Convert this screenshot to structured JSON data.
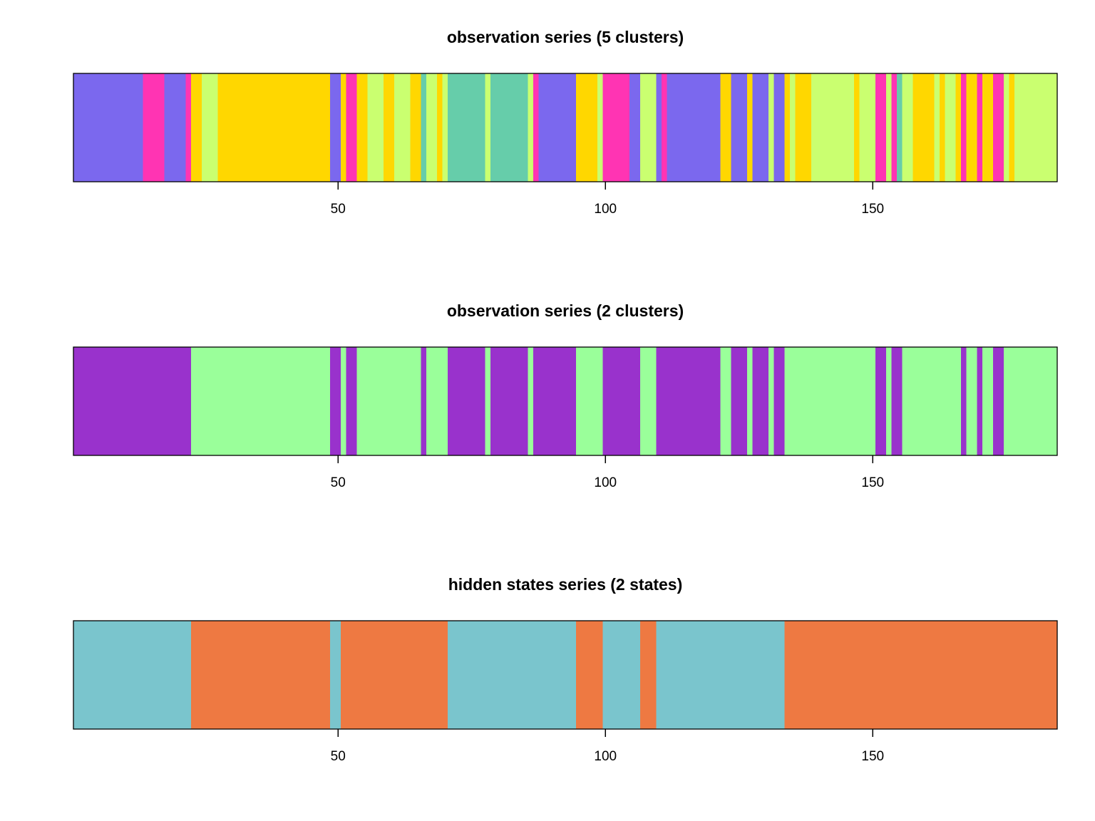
{
  "chart_data": [
    {
      "type": "heatmap",
      "title": "observation series (5 clusters)",
      "xlabel": "",
      "ylabel": "",
      "xlim": [
        0.5,
        184.5
      ],
      "n_observations": 184,
      "xticks": [
        50,
        100,
        150
      ],
      "xtick_labels": [
        "50",
        "100",
        "150"
      ],
      "legend": "none",
      "states": {
        "1": {
          "name": "cluster 1",
          "color": "#7B68EE"
        },
        "2": {
          "name": "cluster 2",
          "color": "#FF34B3"
        },
        "3": {
          "name": "cluster 3",
          "color": "#FFD700"
        },
        "4": {
          "name": "cluster 4",
          "color": "#CAFF70"
        },
        "5": {
          "name": "cluster 5",
          "color": "#66CDAA"
        }
      },
      "runs": [
        [
          1,
          13
        ],
        [
          2,
          4
        ],
        [
          1,
          4
        ],
        [
          2,
          1
        ],
        [
          3,
          2
        ],
        [
          4,
          3
        ],
        [
          3,
          21
        ],
        [
          1,
          2
        ],
        [
          3,
          1
        ],
        [
          2,
          2
        ],
        [
          3,
          2
        ],
        [
          4,
          3
        ],
        [
          3,
          2
        ],
        [
          4,
          3
        ],
        [
          3,
          2
        ],
        [
          5,
          1
        ],
        [
          4,
          2
        ],
        [
          3,
          1
        ],
        [
          4,
          1
        ],
        [
          5,
          7
        ],
        [
          4,
          1
        ],
        [
          5,
          7
        ],
        [
          4,
          1
        ],
        [
          2,
          1
        ],
        [
          1,
          7
        ],
        [
          3,
          4
        ],
        [
          4,
          1
        ],
        [
          2,
          5
        ],
        [
          1,
          2
        ],
        [
          4,
          3
        ],
        [
          1,
          1
        ],
        [
          2,
          1
        ],
        [
          1,
          10
        ],
        [
          3,
          2
        ],
        [
          1,
          3
        ],
        [
          3,
          1
        ],
        [
          1,
          3
        ],
        [
          4,
          1
        ],
        [
          1,
          2
        ],
        [
          3,
          1
        ],
        [
          4,
          1
        ],
        [
          3,
          3
        ],
        [
          4,
          8
        ],
        [
          3,
          1
        ],
        [
          4,
          3
        ],
        [
          2,
          2
        ],
        [
          4,
          1
        ],
        [
          2,
          1
        ],
        [
          5,
          1
        ],
        [
          4,
          2
        ],
        [
          3,
          4
        ],
        [
          4,
          1
        ],
        [
          3,
          1
        ],
        [
          4,
          2
        ],
        [
          3,
          1
        ],
        [
          2,
          1
        ],
        [
          3,
          2
        ],
        [
          2,
          1
        ],
        [
          3,
          2
        ],
        [
          2,
          2
        ],
        [
          4,
          1
        ],
        [
          3,
          1
        ],
        [
          4,
          8
        ]
      ]
    },
    {
      "type": "heatmap",
      "title": "observation series (2 clusters)",
      "xlabel": "",
      "ylabel": "",
      "xlim": [
        0.5,
        184.5
      ],
      "n_observations": 184,
      "xticks": [
        50,
        100,
        150
      ],
      "xtick_labels": [
        "50",
        "100",
        "150"
      ],
      "legend": "none",
      "states": {
        "1": {
          "name": "cluster 1",
          "color": "#9932CC"
        },
        "2": {
          "name": "cluster 2",
          "color": "#9AFF9A"
        }
      },
      "runs": [
        [
          1,
          22
        ],
        [
          2,
          26
        ],
        [
          1,
          2
        ],
        [
          2,
          1
        ],
        [
          1,
          2
        ],
        [
          2,
          12
        ],
        [
          1,
          1
        ],
        [
          2,
          4
        ],
        [
          1,
          7
        ],
        [
          2,
          1
        ],
        [
          1,
          7
        ],
        [
          2,
          1
        ],
        [
          1,
          8
        ],
        [
          2,
          5
        ],
        [
          1,
          7
        ],
        [
          2,
          3
        ],
        [
          1,
          12
        ],
        [
          2,
          2
        ],
        [
          1,
          3
        ],
        [
          2,
          1
        ],
        [
          1,
          3
        ],
        [
          2,
          1
        ],
        [
          1,
          2
        ],
        [
          2,
          17
        ],
        [
          1,
          2
        ],
        [
          2,
          1
        ],
        [
          1,
          2
        ],
        [
          2,
          11
        ],
        [
          1,
          1
        ],
        [
          2,
          2
        ],
        [
          1,
          1
        ],
        [
          2,
          2
        ],
        [
          1,
          2
        ],
        [
          2,
          10
        ]
      ]
    },
    {
      "type": "heatmap",
      "title": "hidden states series (2 states)",
      "xlabel": "",
      "ylabel": "",
      "xlim": [
        0.5,
        184.5
      ],
      "n_observations": 184,
      "xticks": [
        50,
        100,
        150
      ],
      "xtick_labels": [
        "50",
        "100",
        "150"
      ],
      "legend": "none",
      "states": {
        "1": {
          "name": "state 1",
          "color": "#7AC5CD"
        },
        "2": {
          "name": "state 2",
          "color": "#EE7942"
        }
      },
      "runs": [
        [
          1,
          22
        ],
        [
          2,
          26
        ],
        [
          1,
          2
        ],
        [
          2,
          20
        ],
        [
          1,
          24
        ],
        [
          2,
          5
        ],
        [
          1,
          7
        ],
        [
          2,
          3
        ],
        [
          1,
          24
        ],
        [
          2,
          51
        ]
      ]
    }
  ]
}
